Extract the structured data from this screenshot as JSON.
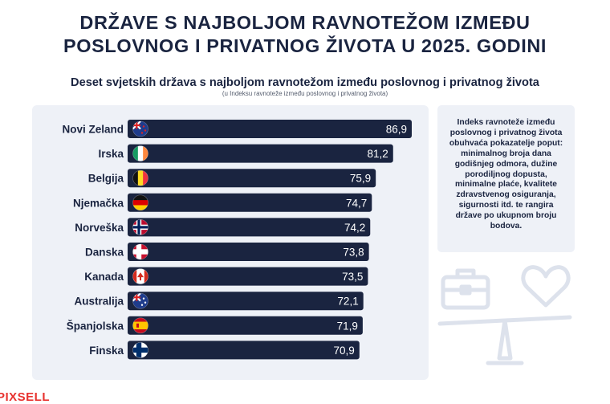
{
  "title": {
    "line1": "DRŽAVE S NAJBOLJOM RAVNOTEŽOM IZMEĐU",
    "line2": "POSLOVNOG I PRIVATNOG ŽIVOTA U 2025. GODINI"
  },
  "subtitle": "Deset svjetskih država s najboljom ravnotežom između poslovnog i privatnog života",
  "subnote": "(u Indeksu ravnoteže između poslovnog i privatnog života)",
  "side_note": "Indeks ravnoteže između poslovnog i privatnog života obuhvaća pokazatelje poput: minimalnog broja dana godišnjeg odmora, dužine porodiljnog dopusta, minimalne plaće, kvalitete zdravstvenog osiguranja, sigurnosti itd. te rangira države po ukupnom broju bodova.",
  "logo": "PIXSELL",
  "colors": {
    "bar": "#1a2440",
    "panel": "#eef1f7",
    "logo": "#e8322f",
    "deco": "#dde2ec"
  },
  "icons": [
    "briefcase-icon",
    "heart-icon",
    "balance-scale-icon"
  ],
  "chart_data": {
    "type": "bar",
    "orientation": "horizontal",
    "categories": [
      "Novi Zeland",
      "Irska",
      "Belgija",
      "Njemačka",
      "Norveška",
      "Danska",
      "Kanada",
      "Australija",
      "Španjolska",
      "Finska"
    ],
    "values": [
      86.9,
      81.2,
      75.9,
      74.7,
      74.2,
      73.8,
      73.5,
      72.1,
      71.9,
      70.9
    ],
    "value_labels": [
      "86,9",
      "81,2",
      "75,9",
      "74,7",
      "74,2",
      "73,8",
      "73,5",
      "72,1",
      "71,9",
      "70,9"
    ],
    "flags": [
      "flag-new-zealand",
      "flag-ireland",
      "flag-belgium",
      "flag-germany",
      "flag-norway",
      "flag-denmark",
      "flag-canada",
      "flag-australia",
      "flag-spain",
      "flag-finland"
    ],
    "xlim": [
      0,
      86.9
    ],
    "grid": false,
    "legend": "none"
  }
}
